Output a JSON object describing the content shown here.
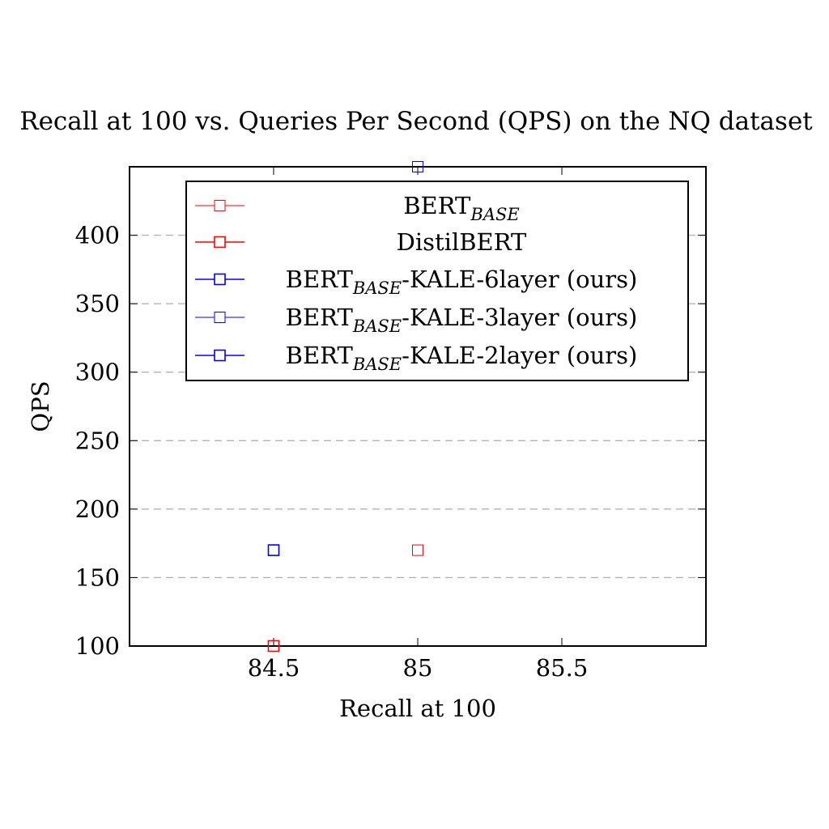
{
  "chart_data": {
    "type": "scatter",
    "title": "Recall at 100 vs. Queries Per Second (QPS) on the NQ dataset",
    "xlabel": "Recall at 100",
    "ylabel": "QPS",
    "xlim": [
      84.0,
      86.0
    ],
    "ylim": [
      100,
      450
    ],
    "x_ticks": [
      84.5,
      85,
      85.5
    ],
    "x_tick_labels": [
      "84.5",
      "85",
      "85.5"
    ],
    "y_ticks": [
      100,
      150,
      200,
      250,
      300,
      350,
      400
    ],
    "y_tick_labels": [
      "100",
      "150",
      "200",
      "250",
      "300",
      "350",
      "400"
    ],
    "grid": "horizontal dashed",
    "legend_position": "top-right",
    "marker": "open-square",
    "series": [
      {
        "name_main": "BERT",
        "name_sub": "BASE",
        "name_suffix": "",
        "color": "#ff0000",
        "line_width": 1,
        "points": [
          {
            "x": 85.0,
            "y": 170
          }
        ]
      },
      {
        "name_main": "DistilBERT",
        "name_sub": "",
        "name_suffix": "",
        "color": "#ff0000",
        "line_width": 1.6,
        "points": [
          {
            "x": 84.5,
            "y": 100
          }
        ]
      },
      {
        "name_main": "BERT",
        "name_sub": "BASE",
        "name_suffix": "-KALE-6layer (ours)",
        "color": "#0000ff",
        "line_width": 1.6,
        "points": [
          {
            "x": 84.5,
            "y": 170
          }
        ]
      },
      {
        "name_main": "BERT",
        "name_sub": "BASE",
        "name_suffix": "-KALE-3layer (ours)",
        "color": "#0000ff",
        "line_width": 1,
        "points": [
          {
            "x": 85.0,
            "y": 450
          }
        ]
      },
      {
        "name_main": "BERT",
        "name_sub": "BASE",
        "name_suffix": "-KALE-2layer (ours)",
        "color": "#0000ff",
        "line_width": 1.6,
        "points": []
      }
    ]
  }
}
